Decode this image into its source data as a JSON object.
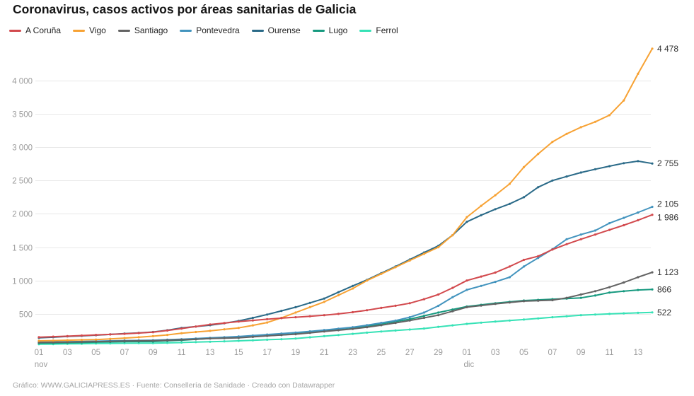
{
  "footer": {
    "text": "Gráfico: WWW.GALICIAPRESS.ES · Fuente: Consellería de Sanidade · Creado con Datawrapper"
  },
  "chart_data": {
    "type": "line",
    "title": "Coronavirus, casos activos por áreas sanitarias de Galicia",
    "xlabel": "",
    "ylabel": "",
    "ylim": [
      0,
      4600
    ],
    "grid": true,
    "legend_position": "top",
    "x_labels": [
      "01 nov",
      "02 nov",
      "03 nov",
      "04 nov",
      "05 nov",
      "06 nov",
      "07 nov",
      "08 nov",
      "09 nov",
      "10 nov",
      "11 nov",
      "12 nov",
      "13 nov",
      "14 nov",
      "15 nov",
      "16 nov",
      "17 nov",
      "18 nov",
      "19 nov",
      "20 nov",
      "21 nov",
      "22 nov",
      "23 nov",
      "24 nov",
      "25 nov",
      "26 nov",
      "27 nov",
      "28 nov",
      "29 nov",
      "30 nov",
      "01 dic",
      "02 dic",
      "03 dic",
      "04 dic",
      "05 dic",
      "06 dic",
      "07 dic",
      "08 dic",
      "09 dic",
      "10 dic",
      "11 dic",
      "12 dic",
      "13 dic",
      "14 dic"
    ],
    "x_axis": {
      "tick_indices": [
        0,
        2,
        4,
        6,
        8,
        10,
        12,
        14,
        16,
        18,
        20,
        22,
        24,
        26,
        28,
        30,
        32,
        34,
        36,
        38,
        40,
        42
      ],
      "tick_labels": [
        "01",
        "03",
        "05",
        "07",
        "09",
        "11",
        "13",
        "15",
        "17",
        "19",
        "21",
        "23",
        "25",
        "27",
        "29",
        "01",
        "03",
        "05",
        "07",
        "09",
        "11",
        "13"
      ],
      "month_labels": [
        {
          "index": 0,
          "label": "nov"
        },
        {
          "index": 30,
          "label": "dic"
        }
      ]
    },
    "y_axis": {
      "ticks": [
        {
          "value": 500,
          "label": "500"
        },
        {
          "value": 1000,
          "label": "1 000"
        },
        {
          "value": 1500,
          "label": "1 500"
        },
        {
          "value": 2000,
          "label": "2 000"
        },
        {
          "value": 2500,
          "label": "2 500"
        },
        {
          "value": 3000,
          "label": "3 000"
        },
        {
          "value": 3500,
          "label": "3 500"
        },
        {
          "value": 4000,
          "label": "4 000"
        }
      ]
    },
    "series": [
      {
        "name": "A Coruña",
        "slug": "a-coruna",
        "color": "#d2494d",
        "end_label": "1 986",
        "label_dy": 4,
        "values": [
          150,
          158,
          165,
          175,
          185,
          192,
          200,
          212,
          225,
          250,
          280,
          310,
          340,
          362,
          385,
          402,
          420,
          436,
          450,
          465,
          480,
          500,
          525,
          555,
          590,
          622,
          660,
          720,
          790,
          890,
          1000,
          1060,
          1120,
          1210,
          1310,
          1365,
          1465,
          1545,
          1620,
          1690,
          1760,
          1830,
          1905,
          1986
        ]
      },
      {
        "name": "Vigo",
        "slug": "vigo",
        "color": "#f7a234",
        "end_label": "4 478",
        "label_dy": 0,
        "values": [
          95,
          100,
          105,
          110,
          115,
          125,
          137,
          150,
          165,
          185,
          210,
          228,
          245,
          268,
          290,
          328,
          370,
          440,
          520,
          600,
          680,
          780,
          880,
          1000,
          1100,
          1200,
          1300,
          1400,
          1500,
          1680,
          1950,
          2120,
          2280,
          2450,
          2700,
          2900,
          3080,
          3200,
          3300,
          3380,
          3480,
          3700,
          4100,
          4478
        ]
      },
      {
        "name": "Santiago",
        "slug": "santiago",
        "color": "#636363",
        "end_label": "1 123",
        "label_dy": 0,
        "values": [
          70,
          73,
          76,
          80,
          85,
          88,
          92,
          95,
          98,
          105,
          112,
          120,
          130,
          135,
          140,
          155,
          170,
          182,
          195,
          215,
          235,
          255,
          275,
          300,
          330,
          365,
          400,
          440,
          480,
          540,
          600,
          625,
          650,
          670,
          690,
          698,
          705,
          740,
          790,
          840,
          900,
          970,
          1050,
          1123
        ]
      },
      {
        "name": "Pontevedra",
        "slug": "pontevedra",
        "color": "#4394be",
        "end_label": "2 105",
        "label_dy": -4,
        "values": [
          75,
          78,
          82,
          86,
          90,
          95,
          100,
          102,
          105,
          112,
          120,
          130,
          140,
          150,
          160,
          175,
          190,
          205,
          220,
          238,
          258,
          278,
          300,
          330,
          365,
          400,
          450,
          520,
          620,
          750,
          860,
          920,
          980,
          1050,
          1210,
          1340,
          1470,
          1620,
          1690,
          1750,
          1860,
          1940,
          2020,
          2105
        ]
      },
      {
        "name": "Ourense",
        "slug": "ourense",
        "color": "#2a6a88",
        "end_label": "2 755",
        "label_dy": 0,
        "values": [
          140,
          150,
          162,
          170,
          180,
          192,
          205,
          215,
          228,
          255,
          290,
          310,
          330,
          360,
          395,
          440,
          490,
          545,
          600,
          665,
          730,
          825,
          920,
          1010,
          1110,
          1210,
          1315,
          1420,
          1520,
          1680,
          1880,
          1980,
          2070,
          2150,
          2250,
          2400,
          2500,
          2560,
          2620,
          2670,
          2715,
          2760,
          2790,
          2755
        ]
      },
      {
        "name": "Lugo",
        "slug": "lugo",
        "color": "#16997f",
        "end_label": "866",
        "label_dy": 0,
        "values": [
          60,
          63,
          67,
          70,
          75,
          80,
          84,
          85,
          85,
          95,
          105,
          118,
          132,
          138,
          145,
          158,
          172,
          185,
          200,
          220,
          240,
          260,
          280,
          315,
          350,
          385,
          420,
          470,
          520,
          565,
          610,
          635,
          660,
          680,
          700,
          710,
          720,
          730,
          740,
          775,
          820,
          840,
          858,
          866
        ]
      },
      {
        "name": "Ferrol",
        "slug": "ferrol",
        "color": "#36e2b6",
        "end_label": "522",
        "label_dy": 0,
        "values": [
          45,
          47,
          50,
          52,
          55,
          57,
          59,
          60,
          60,
          65,
          70,
          76,
          82,
          88,
          95,
          103,
          112,
          120,
          130,
          148,
          165,
          182,
          200,
          218,
          235,
          250,
          265,
          280,
          305,
          328,
          350,
          368,
          385,
          400,
          415,
          432,
          450,
          465,
          480,
          490,
          500,
          508,
          515,
          522
        ]
      }
    ]
  }
}
